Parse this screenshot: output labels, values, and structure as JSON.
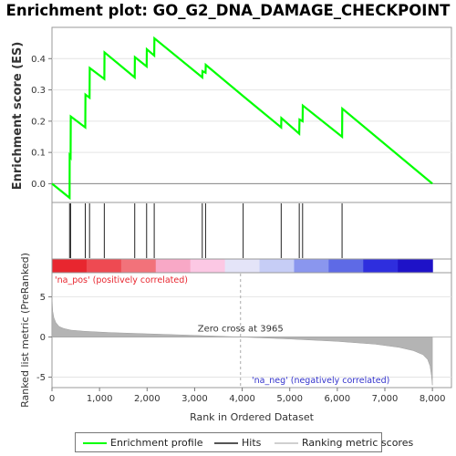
{
  "title": "Enrichment plot: GO_G2_DNA_DAMAGE_CHECKPOINT",
  "chart_data": {
    "type": "line",
    "es_panel": {
      "ylabel": "Enrichment score (ES)",
      "yticks": [
        "0.0",
        "0.1",
        "0.2",
        "0.3",
        "0.4"
      ],
      "ylim": [
        -0.06,
        0.5
      ],
      "grid": true,
      "series": [
        {
          "name": "Enrichment profile",
          "color": "#00ff00",
          "x": [
            0,
            370,
            372,
            392,
            396,
            700,
            704,
            790,
            794,
            1100,
            1104,
            1740,
            1744,
            1990,
            1994,
            2150,
            2154,
            3160,
            3164,
            3230,
            3234,
            4020,
            4820,
            4824,
            5200,
            5204,
            5270,
            5274,
            6100,
            6104,
            8000
          ],
          "y": [
            0.0,
            -0.045,
            0.09,
            0.085,
            0.215,
            0.18,
            0.285,
            0.275,
            0.37,
            0.335,
            0.42,
            0.34,
            0.405,
            0.375,
            0.43,
            0.41,
            0.465,
            0.34,
            0.36,
            0.355,
            0.38,
            0.28,
            0.18,
            0.21,
            0.16,
            0.205,
            0.2,
            0.25,
            0.15,
            0.24,
            0.0
          ]
        }
      ]
    },
    "hits": [
      370,
      392,
      700,
      790,
      1100,
      1740,
      1990,
      2150,
      3160,
      3230,
      4020,
      4820,
      5200,
      5270,
      6100
    ],
    "heatmap_bar": {
      "colors": [
        "#e8262f",
        "#ee4a52",
        "#f2727a",
        "#f8a8c6",
        "#fcc8e4",
        "#e4e4f8",
        "#c6cdf6",
        "#8a96ee",
        "#5e6ae6",
        "#2e2ede",
        "#1e12c8"
      ]
    },
    "ranked_panel": {
      "ylabel": "Ranked list metric (PreRanked)",
      "yticks": [
        "-5",
        "0",
        "5"
      ],
      "ylim": [
        -6.3,
        8.0
      ],
      "profile_x": [
        0,
        15,
        40,
        80,
        150,
        250,
        400,
        700,
        1200,
        2000,
        3000,
        3965,
        5000,
        6000,
        6800,
        7300,
        7600,
        7800,
        7900,
        7950,
        7980,
        8000
      ],
      "profile_y": [
        5.0,
        3.2,
        2.4,
        1.8,
        1.3,
        1.05,
        0.85,
        0.7,
        0.55,
        0.4,
        0.2,
        0.0,
        -0.25,
        -0.55,
        -0.9,
        -1.3,
        -1.7,
        -2.2,
        -2.8,
        -3.6,
        -4.8,
        -6.0
      ],
      "zero_cross_label": "Zero cross at 3965",
      "zero_cross_x": 3965,
      "pos_label": "'na_pos' (positively correlated)",
      "neg_label": "'na_neg' (negatively correlated)"
    },
    "xlabel": "Rank in Ordered Dataset",
    "xticks": [
      "0",
      "1,000",
      "2,000",
      "3,000",
      "4,000",
      "5,000",
      "6,000",
      "7,000",
      "8,000"
    ],
    "xlim": [
      0,
      8400
    ],
    "legend": [
      "Enrichment profile",
      "Hits",
      "Ranking metric scores"
    ],
    "legend_position": "bottom"
  }
}
